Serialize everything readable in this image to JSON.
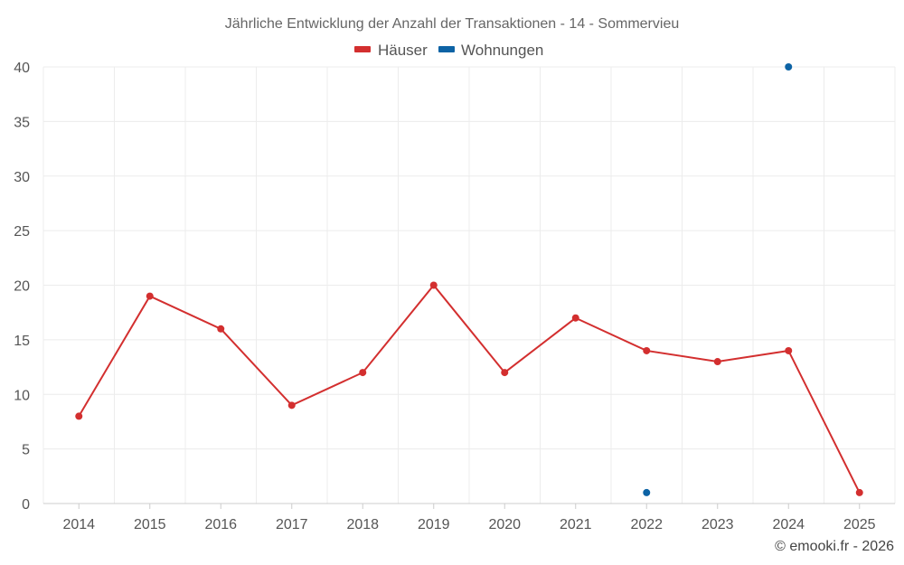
{
  "chart_data": {
    "type": "line",
    "title": "Jährliche Entwicklung der Anzahl der Transaktionen - 14 - Sommervieu",
    "xlabel": "",
    "ylabel": "",
    "categories": [
      "2014",
      "2015",
      "2016",
      "2017",
      "2018",
      "2019",
      "2020",
      "2021",
      "2022",
      "2023",
      "2024",
      "2025"
    ],
    "ylim": [
      0,
      40
    ],
    "yticks": [
      0,
      5,
      10,
      15,
      20,
      25,
      30,
      35,
      40
    ],
    "grid": true,
    "legend_position": "top-center",
    "series": [
      {
        "name": "Häuser",
        "color": "#d32f2f",
        "values": [
          8,
          19,
          16,
          9,
          12,
          20,
          12,
          17,
          14,
          13,
          14,
          1
        ]
      },
      {
        "name": "Wohnungen",
        "color": "#0d63a5",
        "values": [
          null,
          null,
          null,
          null,
          null,
          null,
          null,
          null,
          1,
          null,
          40,
          null
        ]
      }
    ]
  },
  "credit": "© emooki.fr - 2026"
}
